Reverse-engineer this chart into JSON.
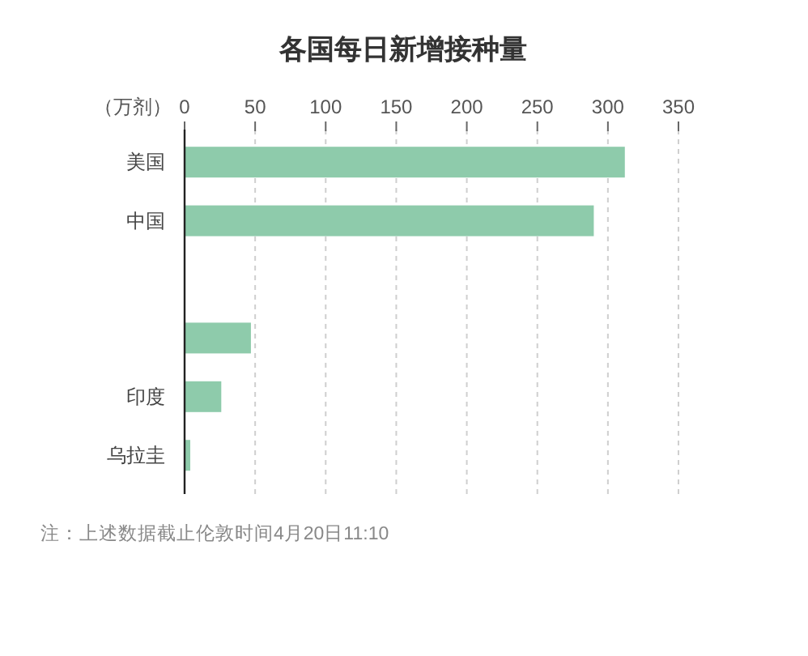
{
  "chart_data": {
    "type": "bar",
    "orientation": "horizontal",
    "title": "各国每日新增接种量",
    "xlabel": "（万剂）",
    "categories": [
      "美国",
      "中国",
      null,
      null,
      "印度",
      "乌拉圭"
    ],
    "values": [
      312,
      290,
      null,
      47,
      26,
      4
    ],
    "color": "#8ecbab",
    "xlim": [
      0,
      350
    ],
    "xticks": [
      0,
      50,
      100,
      150,
      200,
      250,
      300,
      350
    ],
    "grid": "x",
    "annotations": [
      "注：上述数据截止伦敦时间4月20日11:10"
    ]
  }
}
